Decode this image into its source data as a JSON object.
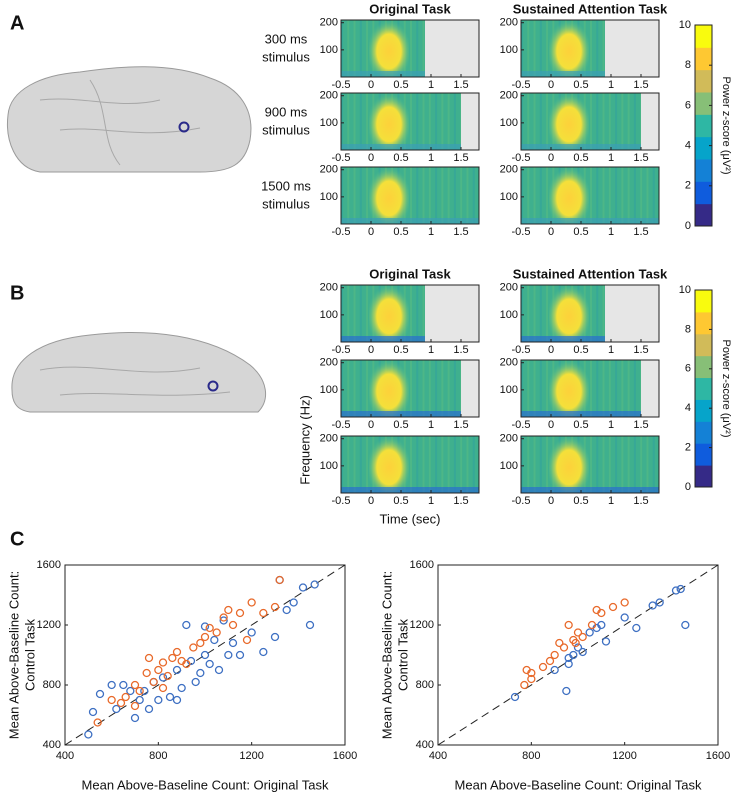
{
  "figure": {
    "panel_labels": [
      "A",
      "B",
      "C"
    ],
    "xlabel": "Time (sec)",
    "ylabel": "Frequency (Hz)"
  },
  "chart_data": [
    {
      "type": "heatmap",
      "title": "Original Task",
      "row_label": [
        "300 ms",
        "stimulus"
      ],
      "xlim": [
        -0.5,
        1.8
      ],
      "xticks": [
        -0.5,
        0,
        0.5,
        1,
        1.5
      ],
      "ylim": [
        0,
        210
      ],
      "yticks": [
        100,
        200
      ],
      "mask_from": 0.9
    },
    {
      "type": "heatmap",
      "title": "Sustained Attention Task",
      "xlim": [
        -0.5,
        1.8
      ],
      "xticks": [
        -0.5,
        0,
        0.5,
        1,
        1.5
      ],
      "ylim": [
        0,
        210
      ],
      "yticks": [
        100,
        200
      ],
      "mask_from": 0.9
    },
    {
      "type": "heatmap",
      "row_label": [
        "900 ms",
        "stimulus"
      ],
      "xlim": [
        -0.5,
        1.8
      ],
      "xticks": [
        -0.5,
        0,
        0.5,
        1,
        1.5
      ],
      "ylim": [
        0,
        210
      ],
      "yticks": [
        100,
        200
      ],
      "mask_from": 1.5
    },
    {
      "type": "heatmap",
      "xlim": [
        -0.5,
        1.8
      ],
      "xticks": [
        -0.5,
        0,
        0.5,
        1,
        1.5
      ],
      "ylim": [
        0,
        210
      ],
      "yticks": [
        100,
        200
      ],
      "mask_from": 1.5
    },
    {
      "type": "heatmap",
      "row_label": [
        "1500 ms",
        "stimulus"
      ],
      "xlim": [
        -0.5,
        1.8
      ],
      "xticks": [
        -0.5,
        0,
        0.5,
        1,
        1.5
      ],
      "ylim": [
        0,
        210
      ],
      "yticks": [
        100,
        200
      ]
    },
    {
      "type": "heatmap",
      "xlim": [
        -0.5,
        1.8
      ],
      "xticks": [
        -0.5,
        0,
        0.5,
        1,
        1.5
      ],
      "ylim": [
        0,
        210
      ],
      "yticks": [
        100,
        200
      ]
    },
    {
      "type": "heatmap",
      "title": "Original Task",
      "xlim": [
        -0.5,
        1.8
      ],
      "xticks": [
        -0.5,
        0,
        0.5,
        1,
        1.5
      ],
      "ylim": [
        0,
        210
      ],
      "yticks": [
        100,
        200
      ],
      "mask_from": 0.9
    },
    {
      "type": "heatmap",
      "title": "Sustained Attention Task",
      "xlim": [
        -0.5,
        1.8
      ],
      "xticks": [
        -0.5,
        0,
        0.5,
        1,
        1.5
      ],
      "ylim": [
        0,
        210
      ],
      "yticks": [
        100,
        200
      ],
      "mask_from": 0.9
    },
    {
      "type": "heatmap",
      "xlim": [
        -0.5,
        1.8
      ],
      "xticks": [
        -0.5,
        0,
        0.5,
        1,
        1.5
      ],
      "ylim": [
        0,
        210
      ],
      "yticks": [
        100,
        200
      ],
      "mask_from": 1.5
    },
    {
      "type": "heatmap",
      "xlim": [
        -0.5,
        1.8
      ],
      "xticks": [
        -0.5,
        0,
        0.5,
        1,
        1.5
      ],
      "ylim": [
        0,
        210
      ],
      "yticks": [
        100,
        200
      ],
      "mask_from": 1.5
    },
    {
      "type": "heatmap",
      "xlim": [
        -0.5,
        1.8
      ],
      "xticks": [
        -0.5,
        0,
        0.5,
        1,
        1.5
      ],
      "ylim": [
        0,
        210
      ],
      "yticks": [
        100,
        200
      ]
    },
    {
      "type": "heatmap",
      "xlim": [
        -0.5,
        1.8
      ],
      "xticks": [
        -0.5,
        0,
        0.5,
        1,
        1.5
      ],
      "ylim": [
        0,
        210
      ],
      "yticks": [
        100,
        200
      ]
    },
    {
      "type": "colorbar",
      "label": "Power z-score (μV²)",
      "ylim": [
        0,
        10
      ],
      "yticks": [
        0,
        2,
        4,
        6,
        8,
        10
      ],
      "colors": [
        "#352a87",
        "#0f5cdd",
        "#1481d6",
        "#06a4ca",
        "#2eb7a4",
        "#87bf77",
        "#d1bb59",
        "#fec832",
        "#f9fb0e"
      ]
    },
    {
      "type": "colorbar",
      "label": "Power z-score (μV²)",
      "ylim": [
        0,
        10
      ],
      "yticks": [
        0,
        2,
        4,
        6,
        8,
        10
      ],
      "colors": [
        "#352a87",
        "#0f5cdd",
        "#1481d6",
        "#06a4ca",
        "#2eb7a4",
        "#87bf77",
        "#d1bb59",
        "#fec832",
        "#f9fb0e"
      ]
    },
    {
      "type": "scatter",
      "xlabel": "Mean Above-Baseline Count: Original Task",
      "ylabel": [
        "Mean Above-Baseline Count:",
        "Control Task"
      ],
      "xlim": [
        400,
        1600
      ],
      "xticks": [
        400,
        800,
        1200,
        1600
      ],
      "ylim": [
        400,
        1600
      ],
      "yticks": [
        400,
        800,
        1200,
        1600
      ],
      "diagonal": true,
      "series": [
        {
          "color": "#3d6fc2",
          "x": [
            500,
            520,
            550,
            600,
            620,
            650,
            680,
            700,
            720,
            740,
            760,
            780,
            800,
            820,
            850,
            880,
            900,
            920,
            940,
            960,
            980,
            1000,
            1020,
            1040,
            1060,
            1080,
            1100,
            1120,
            1150,
            1200,
            1250,
            1300,
            1320,
            1350,
            1380,
            1420,
            1450,
            1470,
            1000,
            880
          ],
          "values": [
            470,
            620,
            740,
            800,
            640,
            800,
            760,
            580,
            700,
            760,
            640,
            820,
            700,
            850,
            720,
            900,
            780,
            1200,
            960,
            820,
            880,
            1000,
            940,
            1100,
            900,
            1230,
            1000,
            1080,
            1000,
            1150,
            1020,
            1120,
            1500,
            1300,
            1350,
            1450,
            1200,
            1470,
            1190,
            700
          ]
        },
        {
          "color": "#e8692a",
          "x": [
            540,
            600,
            640,
            660,
            700,
            720,
            750,
            780,
            800,
            820,
            840,
            860,
            880,
            900,
            920,
            950,
            980,
            1000,
            1020,
            1050,
            1080,
            1100,
            1120,
            1150,
            1180,
            1200,
            1250,
            1300,
            1320,
            760,
            820,
            700
          ],
          "values": [
            550,
            700,
            680,
            720,
            800,
            760,
            880,
            820,
            900,
            950,
            860,
            980,
            1020,
            960,
            940,
            1050,
            1080,
            1120,
            1180,
            1150,
            1250,
            1300,
            1200,
            1280,
            1100,
            1350,
            1280,
            1320,
            1500,
            980,
            780,
            660
          ]
        }
      ]
    },
    {
      "type": "scatter",
      "xlabel": "Mean Above-Baseline Count: Original Task",
      "ylabel": [
        "Mean Above-Baseline Count:",
        "Control Task"
      ],
      "xlim": [
        400,
        1600
      ],
      "xticks": [
        400,
        800,
        1200,
        1600
      ],
      "ylim": [
        400,
        1600
      ],
      "yticks": [
        400,
        800,
        1200,
        1600
      ],
      "diagonal": true,
      "series": [
        {
          "color": "#3d6fc2",
          "x": [
            730,
            900,
            950,
            960,
            980,
            1000,
            1020,
            1050,
            1080,
            1100,
            1120,
            1200,
            1250,
            1320,
            1350,
            1420,
            1440,
            1460,
            960
          ],
          "values": [
            720,
            900,
            760,
            980,
            1000,
            1050,
            1020,
            1150,
            1180,
            1200,
            1090,
            1250,
            1180,
            1330,
            1350,
            1430,
            1440,
            1200,
            940
          ]
        },
        {
          "color": "#e8692a",
          "x": [
            770,
            780,
            800,
            800,
            850,
            880,
            900,
            920,
            940,
            960,
            980,
            1000,
            1020,
            1060,
            1080,
            1100,
            1150,
            1200,
            990
          ],
          "values": [
            800,
            900,
            880,
            840,
            920,
            960,
            1000,
            1080,
            1050,
            1200,
            1100,
            1150,
            1120,
            1200,
            1300,
            1280,
            1320,
            1350,
            1080
          ]
        }
      ]
    }
  ]
}
